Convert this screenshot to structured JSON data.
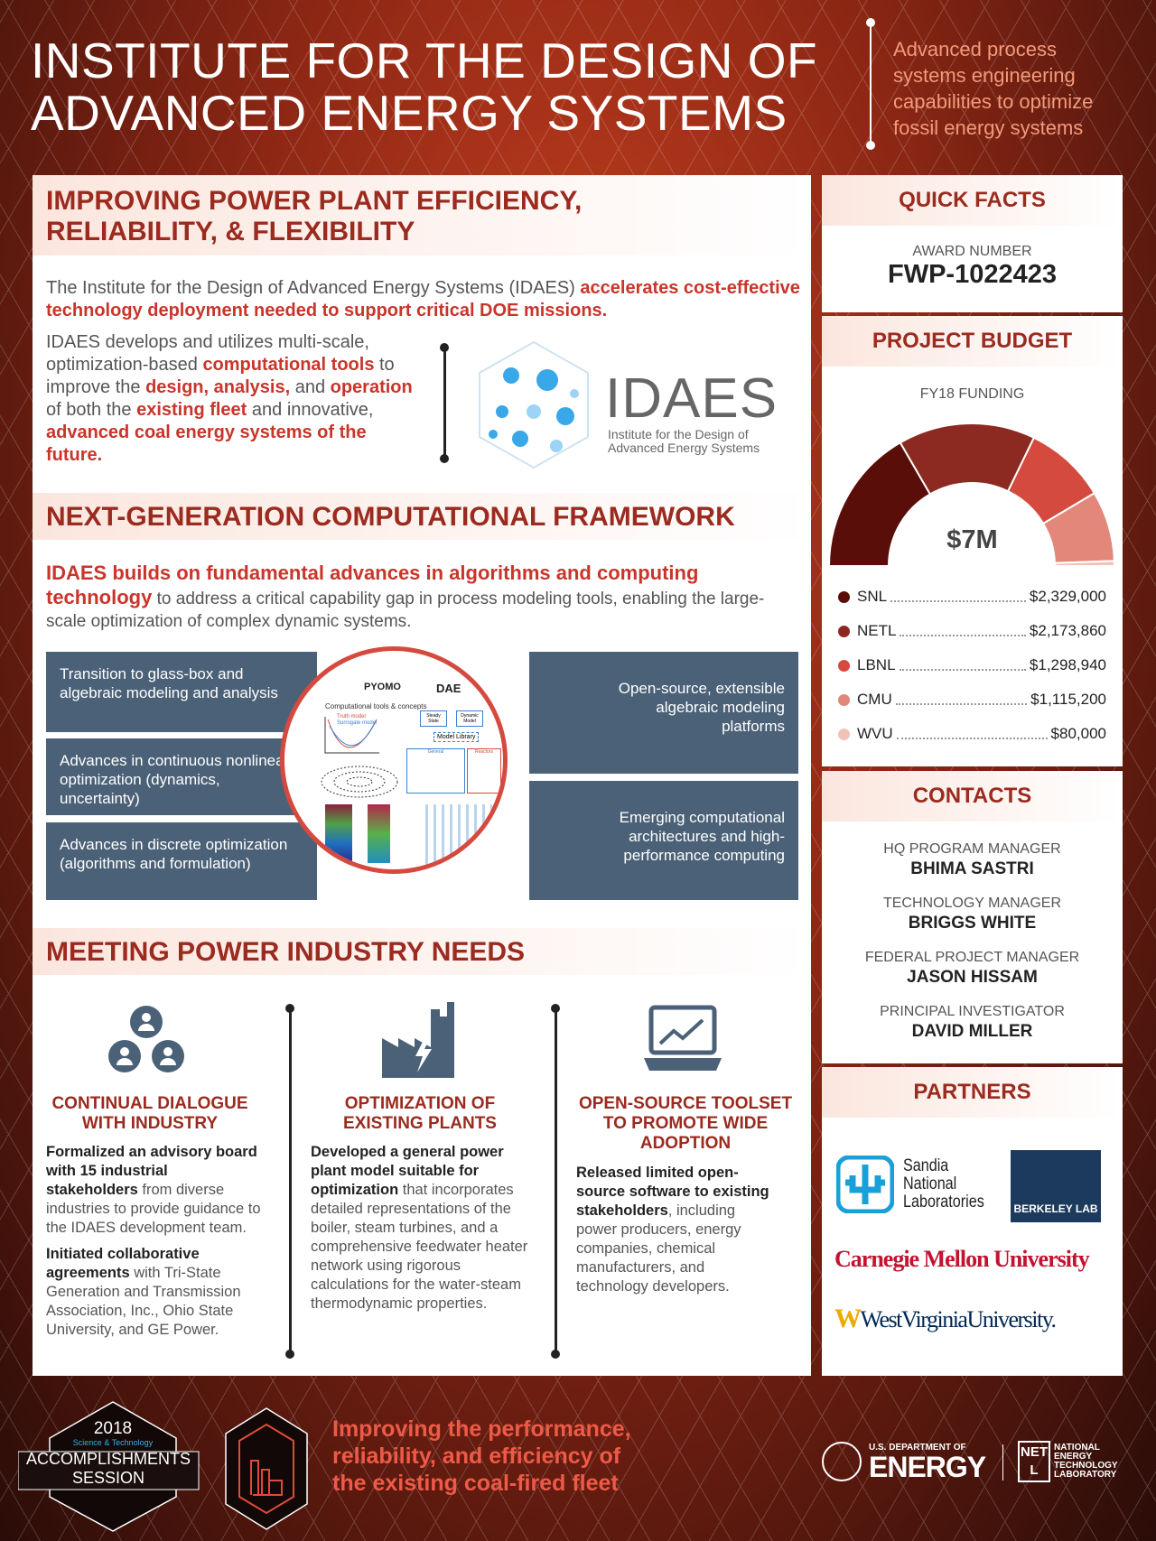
{
  "header": {
    "title_line1": "INSTITUTE FOR THE DESIGN OF",
    "title_line2": "ADVANCED ENERGY SYSTEMS",
    "subtitle": [
      "Advanced process",
      "systems engineering",
      "capabilities to optimize",
      "fossil energy systems"
    ]
  },
  "section1": {
    "heading_line1": "IMPROVING POWER PLANT EFFICIENCY,",
    "heading_line2": "RELIABILITY, & FLEXIBILITY",
    "intro_plain": "The Institute for the Design of Advanced Energy Systems (IDAES) ",
    "intro_bold": "accelerates cost-effective technology deployment needed to support critical DOE missions.",
    "p2": [
      "IDAES develops and utilizes multi-scale, optimization-based ",
      "computational tools",
      " to improve the ",
      "design, analysis,",
      " and ",
      "operation",
      " of both the ",
      "existing fleet",
      " and innovative, ",
      "advanced coal energy systems of the future."
    ],
    "logo": {
      "name": "IDAES",
      "tagline_line1": "Institute for the Design of",
      "tagline_line2": "Advanced Energy Systems"
    }
  },
  "section2": {
    "heading": "NEXT-GENERATION COMPUTATIONAL FRAMEWORK",
    "lead_bold": "IDAES builds on fundamental advances in algorithms and computing technology",
    "lead_plain": " to address a critical capability gap in process modeling tools, enabling the large-scale optimization of complex dynamic systems.",
    "left_items": [
      "Transition to glass-box and algebraic modeling and analysis",
      "Advances in continuous nonlinear optimization (dynamics, uncertainty)",
      "Advances in discrete optimization (algorithms and formulation)"
    ],
    "right_items": [
      "Open-source, extensible algebraic modeling platforms",
      "Emerging computational architectures and high-performance computing"
    ],
    "circle": {
      "pyomo": "PYOMO",
      "dae": "DAE",
      "caption": "Computational tools & concepts",
      "steady": "Steady State",
      "dynamic": "Dynamic Model",
      "library": "Model Library",
      "general": "General",
      "reactors": "Reactors",
      "truth": "Truth model",
      "surrogate": "Surrogate model"
    }
  },
  "section3": {
    "heading": "MEETING POWER INDUSTRY NEEDS",
    "columns": [
      {
        "icon": "people-network-icon",
        "title_line1": "CONTINUAL DIALOGUE",
        "title_line2": "WITH INDUSTRY",
        "p1_bold": "Formalized an advisory board with 15 industrial stakeholders",
        "p1_plain": " from diverse industries to provide guidance to the IDAES development team.",
        "p2_bold": "Initiated collaborative agreements",
        "p2_plain": " with Tri-State Generation and Transmission Association, Inc., Ohio State University, and GE Power."
      },
      {
        "icon": "power-plant-icon",
        "title_line1": "OPTIMIZATION OF",
        "title_line2": "EXISTING PLANTS",
        "p1_bold": "Developed a general power plant model suitable for optimization",
        "p1_plain": " that incorporates detailed representations of the boiler, steam turbines, and a comprehensive feedwater heater network using rigorous calculations for the water-steam thermodynamic properties."
      },
      {
        "icon": "laptop-chart-icon",
        "title_line1": "OPEN-SOURCE TOOLSET",
        "title_line2": "TO PROMOTE WIDE",
        "title_line3": "ADOPTION",
        "p1_bold": "Released limited open-source software to existing stakeholders",
        "p1_plain": ", including power producers, energy companies, chemical manufacturers, and technology developers."
      }
    ]
  },
  "quick_facts": {
    "heading": "QUICK FACTS",
    "award_label": "AWARD NUMBER",
    "award_number": "FWP-1022423"
  },
  "budget": {
    "heading": "PROJECT BUDGET",
    "label": "FY18 FUNDING",
    "total": "$7M",
    "items": [
      {
        "name": "SNL",
        "amount": "$2,329,000",
        "value": 2329000,
        "color": "#5a0e0a"
      },
      {
        "name": "NETL",
        "amount": "$2,173,860",
        "value": 2173860,
        "color": "#8c2a22"
      },
      {
        "name": "LBNL",
        "amount": "$1,298,940",
        "value": 1298940,
        "color": "#d44a3f"
      },
      {
        "name": "CMU",
        "amount": "$1,115,200",
        "value": 1115200,
        "color": "#e2877a"
      },
      {
        "name": "WVU",
        "amount": "$80,000",
        "value": 80000,
        "color": "#f2c2b8"
      }
    ]
  },
  "contacts": {
    "heading": "CONTACTS",
    "people": [
      {
        "role": "HQ PROGRAM MANAGER",
        "name": "BHIMA SASTRI"
      },
      {
        "role": "TECHNOLOGY MANAGER",
        "name": "BRIGGS WHITE"
      },
      {
        "role": "FEDERAL PROJECT MANAGER",
        "name": "JASON HISSAM"
      },
      {
        "role": "PRINCIPAL INVESTIGATOR",
        "name": "DAVID MILLER"
      }
    ]
  },
  "partners": {
    "heading": "PARTNERS",
    "sandia": [
      "Sandia",
      "National",
      "Laboratories"
    ],
    "berkeley": "BERKELEY LAB",
    "cmu": "Carnegie Mellon University",
    "wvu": "WestVirginiaUniversity."
  },
  "footer": {
    "badge_year": "2018",
    "badge_sub": "Science & Technology",
    "badge_line1": "ACCOMPLISHMENTS",
    "badge_line2": "SESSION",
    "tagline": [
      "Improving the performance,",
      "reliability, and efficiency of",
      "the existing coal-fired fleet"
    ],
    "doe_small": "U.S. DEPARTMENT OF",
    "doe_big": "ENERGY",
    "netl_logo": "NETL",
    "netl_name": [
      "NATIONAL",
      "ENERGY",
      "TECHNOLOGY",
      "LABORATORY"
    ]
  },
  "colors": {
    "accent_red": "#c9352b",
    "dark_red": "#9b2a1f",
    "slate": "#4b6177"
  }
}
